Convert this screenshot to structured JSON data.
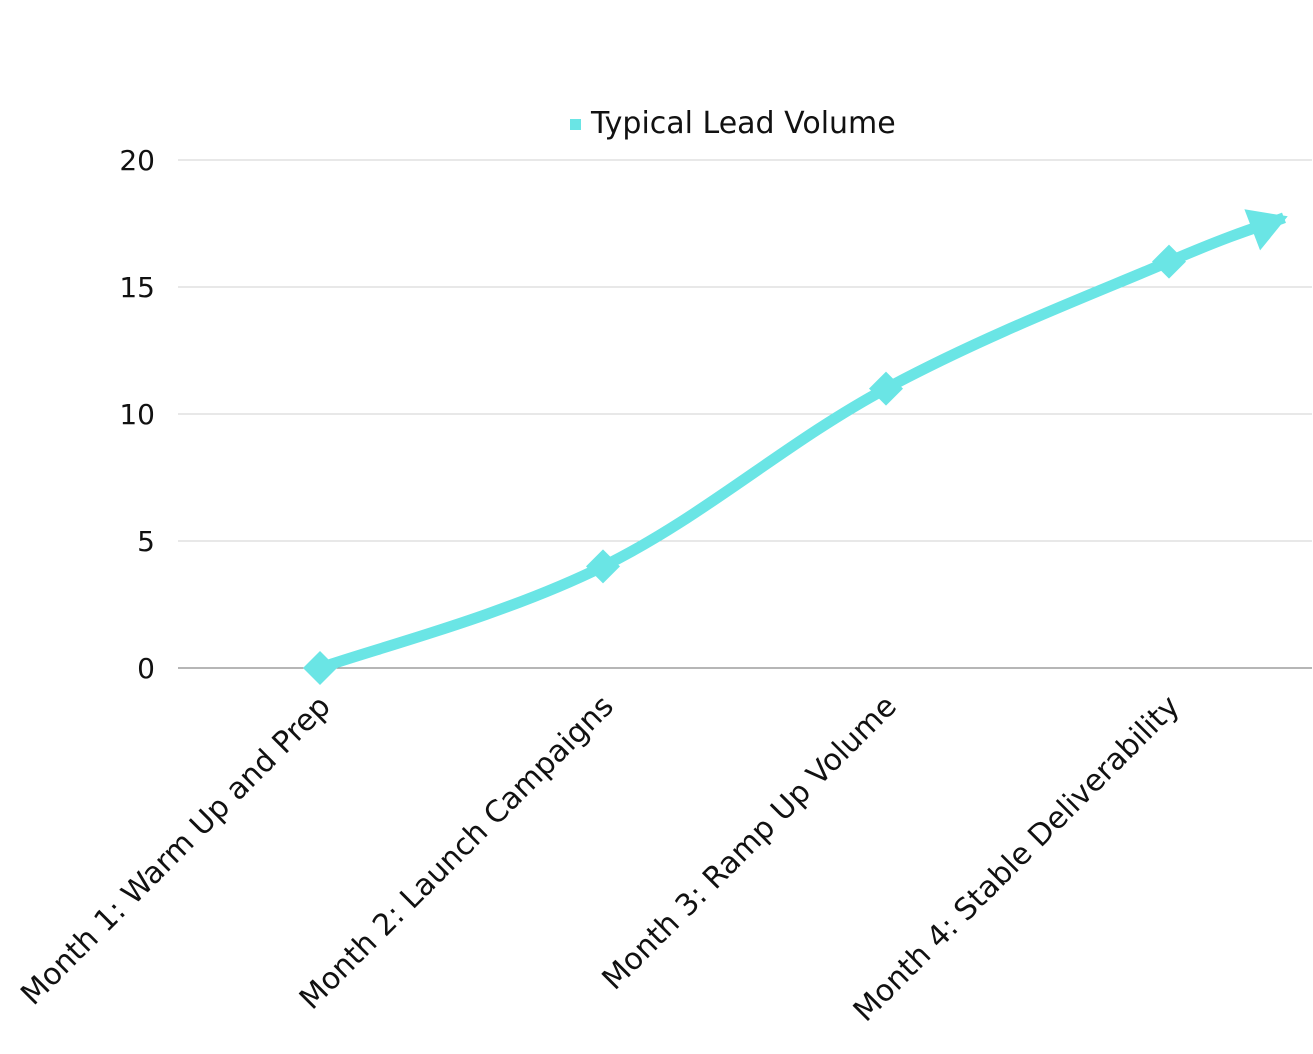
{
  "chart_data": {
    "type": "line",
    "categories": [
      "Month 1: Warm Up and Prep",
      "Month 2: Launch Campaigns",
      "Month 3: Ramp Up Volume",
      "Month 4: Stable Deliverability"
    ],
    "series": [
      {
        "name": "Typical Lead Volume",
        "values": [
          0,
          4,
          11,
          16
        ],
        "color": "#6ae5e5",
        "marker": "diamond",
        "end_arrow": true
      }
    ],
    "ylim": [
      0,
      20
    ],
    "yticks": [
      "0",
      "5",
      "10",
      "15",
      "20"
    ],
    "grid": true,
    "legend_position": "top-center"
  }
}
